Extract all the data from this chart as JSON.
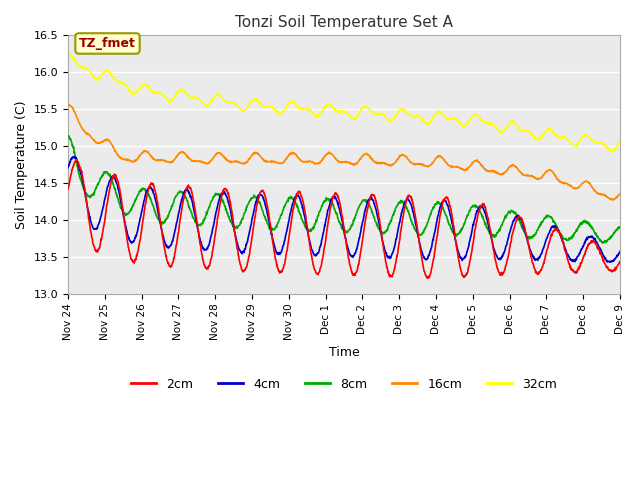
{
  "title": "Tonzi Soil Temperature Set A",
  "xlabel": "Time",
  "ylabel": "Soil Temperature (C)",
  "ylim": [
    13.0,
    16.5
  ],
  "background_color": "#ffffff",
  "plot_bg_color": "#ebebeb",
  "grid_color": "#ffffff",
  "annotation_label": "TZ_fmet",
  "annotation_bg": "#ffffcc",
  "annotation_border": "#999900",
  "annotation_text_color": "#990000",
  "colors": {
    "2cm": "#ff0000",
    "4cm": "#0000cc",
    "8cm": "#00aa00",
    "16cm": "#ff8800",
    "32cm": "#ffff00"
  },
  "x_tick_labels": [
    "Nov 24",
    "Nov 25",
    "Nov 26",
    "Nov 27",
    "Nov 28",
    "Nov 29",
    "Nov 30",
    "Dec 1",
    "Dec 2",
    "Dec 3",
    "Dec 4",
    "Dec 5",
    "Dec 6",
    "Dec 7",
    "Dec 8",
    "Dec 9"
  ],
  "yticks": [
    13.0,
    13.5,
    14.0,
    14.5,
    15.0,
    15.5,
    16.0,
    16.5
  ],
  "n_points": 1440,
  "legend_entries": [
    "2cm",
    "4cm",
    "8cm",
    "16cm",
    "32cm"
  ]
}
